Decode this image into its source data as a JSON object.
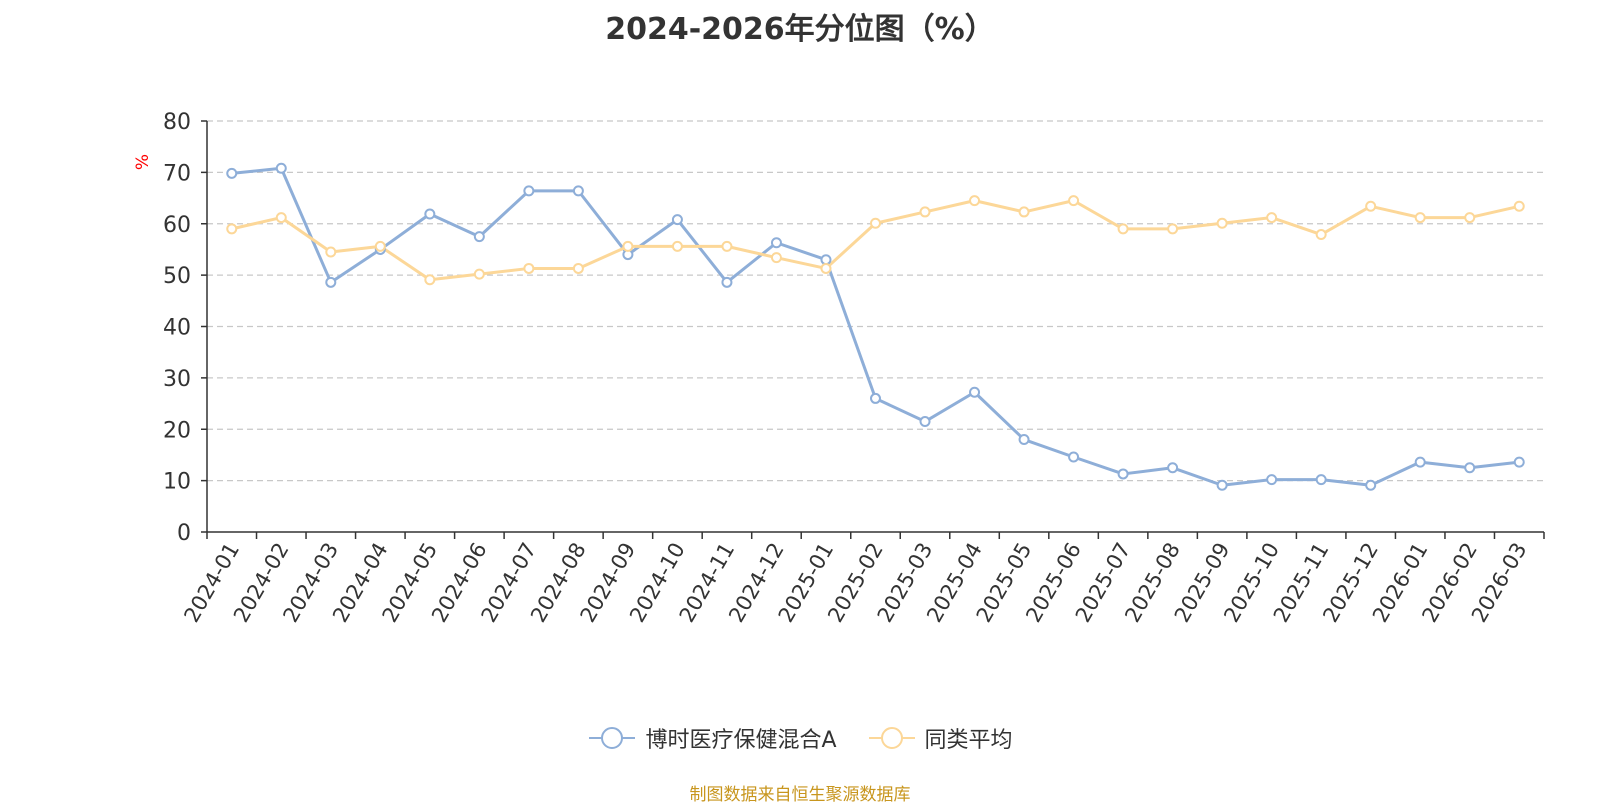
{
  "title": "2024-2026年分位图（%）",
  "source": "制图数据来自恒生聚源数据库",
  "source_color": "#c8961e",
  "chart_data": {
    "type": "line",
    "title": "2024-2026年分位图（%）",
    "ylabel": "%",
    "ylabel_color": "#ff0000",
    "ylim": [
      0,
      80
    ],
    "yticks": [
      0,
      10,
      20,
      30,
      40,
      50,
      60,
      70,
      80
    ],
    "grid": true,
    "legend_position": "bottom",
    "categories": [
      "2024-01",
      "2024-02",
      "2024-03",
      "2024-04",
      "2024-05",
      "2024-06",
      "2024-07",
      "2024-08",
      "2024-09",
      "2024-10",
      "2024-11",
      "2024-12",
      "2025-01",
      "2025-02",
      "2025-03",
      "2025-04",
      "2025-05",
      "2025-06",
      "2025-07",
      "2025-08",
      "2025-09",
      "2025-10",
      "2025-11",
      "2025-12",
      "2026-01",
      "2026-02",
      "2026-03"
    ],
    "series": [
      {
        "name": "博时医疗保健混合A",
        "color": "#8eaed8",
        "values": [
          69.8,
          70.8,
          48.6,
          55.0,
          61.9,
          57.5,
          66.4,
          66.4,
          54.0,
          60.8,
          48.6,
          56.3,
          53.0,
          26.0,
          21.5,
          27.2,
          18.0,
          14.6,
          11.3,
          12.5,
          9.1,
          10.2,
          10.2,
          9.1,
          13.6,
          12.5,
          13.6
        ]
      },
      {
        "name": "同类平均",
        "color": "#fcd798",
        "values": [
          59.0,
          61.2,
          54.5,
          55.6,
          49.1,
          50.2,
          51.3,
          51.3,
          55.6,
          55.6,
          55.6,
          53.4,
          51.3,
          60.1,
          62.3,
          64.5,
          62.3,
          64.5,
          59.0,
          59.0,
          60.1,
          61.2,
          57.9,
          63.4,
          61.2,
          61.2,
          63.4
        ]
      }
    ]
  }
}
